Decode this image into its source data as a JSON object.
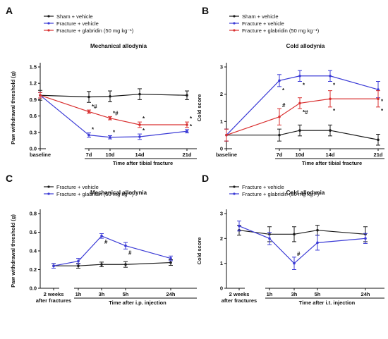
{
  "chart_data": [
    {
      "panel": "A",
      "type": "line",
      "title": "Mechanical allodynia",
      "ylabel": "Paw withdrawal threshold (g)",
      "xlabel": "Time after tibial fracture",
      "baseline_label": "baseline",
      "categories": [
        "baseline",
        "7d",
        "10d",
        "14d",
        "21d"
      ],
      "yticks": [
        "0.0",
        "0.3",
        "0.6",
        "0.9",
        "1.2",
        "1.5"
      ],
      "ylim": [
        0,
        1.5
      ],
      "legend": "top-left",
      "series": [
        {
          "name": "Sham + vehicle",
          "color": "#1a1a1a",
          "values": [
            0.98,
            0.95,
            0.96,
            1.0,
            0.98
          ],
          "errors": [
            0.09,
            0.1,
            0.1,
            0.1,
            0.08
          ],
          "annotations": [
            "",
            "",
            "",
            "",
            ""
          ]
        },
        {
          "name": "Fracture + vehicle",
          "color": "#3b3bd6",
          "values": [
            0.98,
            0.25,
            0.21,
            0.22,
            0.32
          ],
          "errors": [
            0.05,
            0.04,
            0.03,
            0.05,
            0.03
          ],
          "annotations": [
            "",
            "*",
            "*",
            "*",
            "*"
          ]
        },
        {
          "name": "Fracture + glabridin (50 mg kg⁻¹)",
          "color": "#d93030",
          "values": [
            0.98,
            0.68,
            0.56,
            0.44,
            0.44
          ],
          "errors": [
            0.05,
            0.03,
            0.03,
            0.05,
            0.05
          ],
          "annotations": [
            "",
            "*#",
            "*#",
            "*",
            "*"
          ]
        }
      ]
    },
    {
      "panel": "B",
      "type": "line",
      "title": "Cold allodynia",
      "ylabel": "Cold score",
      "xlabel": "Time after tibial fracture",
      "baseline_label": "baseline",
      "categories": [
        "baseline",
        "7d",
        "10d",
        "14d",
        "21d"
      ],
      "yticks": [
        "0",
        "1",
        "2",
        "3"
      ],
      "ylim": [
        0,
        3
      ],
      "legend": "top-left",
      "series": [
        {
          "name": "Sham + vehicle",
          "color": "#1a1a1a",
          "values": [
            0.5,
            0.5,
            0.67,
            0.67,
            0.33
          ],
          "errors": [
            0.22,
            0.22,
            0.2,
            0.2,
            0.2
          ],
          "annotations": [
            "",
            "",
            "",
            "",
            ""
          ]
        },
        {
          "name": "Fracture + vehicle",
          "color": "#3b3bd6",
          "values": [
            0.5,
            2.5,
            2.67,
            2.67,
            2.17
          ],
          "errors": [
            0.22,
            0.22,
            0.2,
            0.2,
            0.3
          ],
          "annotations": [
            "",
            "*",
            "*",
            "*",
            "*"
          ]
        },
        {
          "name": "Fracture + glabridin (50 mg kg⁻¹)",
          "color": "#d93030",
          "values": [
            0.5,
            1.17,
            1.67,
            1.83,
            1.83
          ],
          "errors": [
            0.22,
            0.3,
            0.2,
            0.3,
            0.3
          ],
          "annotations": [
            "",
            "#",
            "*#",
            "*",
            "*"
          ]
        }
      ]
    },
    {
      "panel": "C",
      "type": "line",
      "title": "Mechanical allodynia",
      "ylabel": "Paw withdrawal threshold (g)",
      "xlabel": "Time after i.p. injection",
      "baseline_label": "2 weeks\nafter fractures",
      "categories": [
        "2 weeks after fractures",
        "1h",
        "3h",
        "5h",
        "24h"
      ],
      "yticks": [
        "0.0",
        "0.2",
        "0.4",
        "0.6",
        "0.8"
      ],
      "ylim": [
        0,
        0.8
      ],
      "legend": "top-left",
      "series": [
        {
          "name": "Fracture + vehicle",
          "color": "#1a1a1a",
          "values": [
            0.24,
            0.24,
            0.255,
            0.255,
            0.275
          ],
          "errors": [
            0.025,
            0.025,
            0.025,
            0.03,
            0.03
          ],
          "annotations": [
            "",
            "",
            "",
            "",
            ""
          ]
        },
        {
          "name": "Fracture + glabridin (50 mg kg⁻¹)",
          "color": "#3b3bd6",
          "values": [
            0.24,
            0.29,
            0.56,
            0.455,
            0.32
          ],
          "errors": [
            0.025,
            0.03,
            0.025,
            0.035,
            0.025
          ],
          "annotations": [
            "",
            "",
            "#",
            "#",
            ""
          ]
        }
      ]
    },
    {
      "panel": "D",
      "type": "line",
      "title": "Cold allodynia",
      "ylabel": "Cold score",
      "xlabel": "Time after i.t. injection",
      "baseline_label": "2 weeks\nafter fractures",
      "categories": [
        "2 weeks after fractures",
        "1h",
        "3h",
        "5h",
        "24h"
      ],
      "yticks": [
        "0",
        "1",
        "2",
        "3"
      ],
      "ylim": [
        0,
        3
      ],
      "legend": "top-left",
      "series": [
        {
          "name": "Fracture + vehicle",
          "color": "#1a1a1a",
          "values": [
            2.33,
            2.17,
            2.17,
            2.33,
            2.17
          ],
          "errors": [
            0.2,
            0.3,
            0.3,
            0.2,
            0.3
          ],
          "annotations": [
            "",
            "",
            "",
            "",
            ""
          ]
        },
        {
          "name": "Fracture + glabridin (50 mg kg⁻¹)",
          "color": "#3b3bd6",
          "values": [
            2.5,
            2.0,
            1.0,
            1.83,
            2.0
          ],
          "errors": [
            0.2,
            0.25,
            0.25,
            0.3,
            0.2
          ],
          "annotations": [
            "",
            "",
            "#",
            "",
            ""
          ]
        }
      ]
    }
  ]
}
